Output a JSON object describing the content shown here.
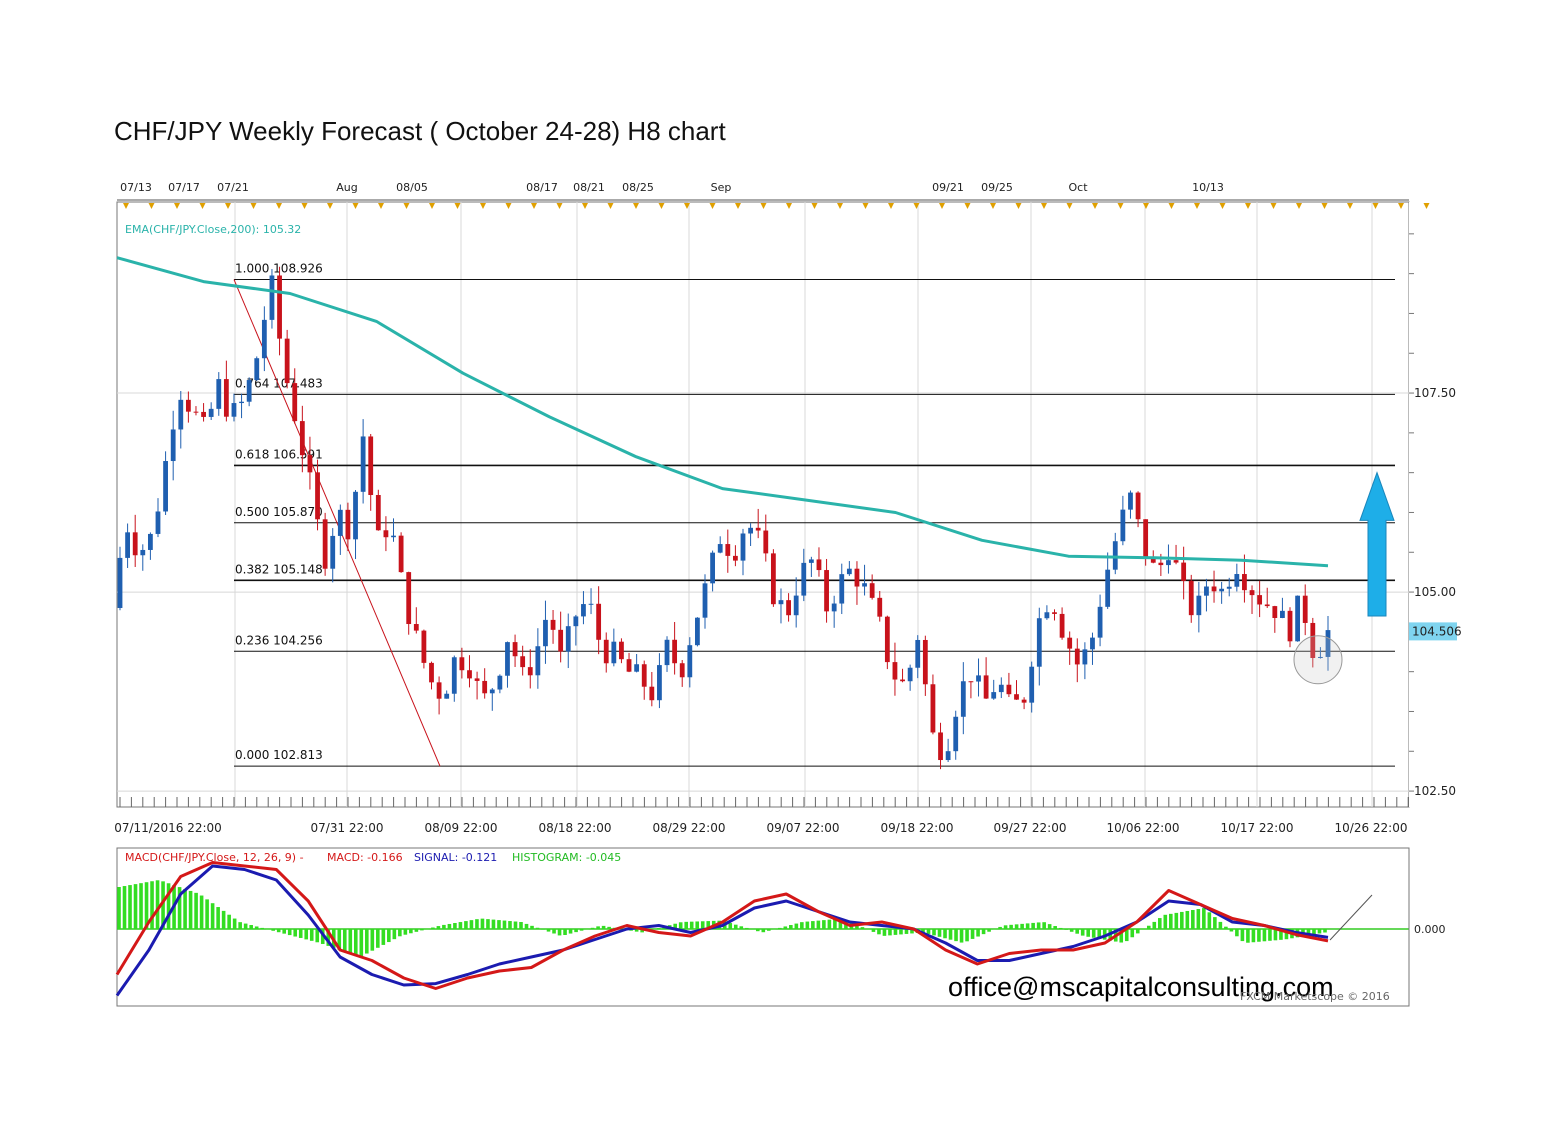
{
  "page": {
    "title": "CHF/JPY  Weekly Forecast ( October 24-28) H8 chart",
    "email": "office@mscapitalconsulting.com",
    "copyright": "FXCM Marketscope © 2016"
  },
  "colors": {
    "bull": "#1f5fb0",
    "bear": "#c8121b",
    "ema": "#2ab3aa",
    "macd": "#d41818",
    "signal": "#1b1bb0",
    "histogram": "#33dd22",
    "arrow": "#1eaee8",
    "price_label_bg": "#7fd4ef"
  },
  "chart_data": [
    {
      "type": "candlestick",
      "ylim": [
        102.3,
        109.9
      ],
      "yticks": [
        "107.50",
        "105.00",
        "102.50"
      ],
      "ytick_values": [
        107.5,
        105.0,
        102.5
      ],
      "top_date_labels": [
        "07/13",
        "07/17",
        "07/21",
        "Aug",
        "08/05",
        "08/17",
        "08/21",
        "08/25",
        "Sep",
        "09/21",
        "09/25",
        "Oct",
        "10/13"
      ],
      "bottom_date_labels": [
        "07/11/2016 22:00",
        "07/31 22:00",
        "08/09 22:00",
        "08/18 22:00",
        "08/29 22:00",
        "09/07 22:00",
        "09/18 22:00",
        "09/27 22:00",
        "10/06 22:00",
        "10/17 22:00",
        "10/26 22:00"
      ],
      "indicator_label": "EMA(CHF/JPY.Close,200): 105.32",
      "current_price_label": "104.506",
      "current_price": 104.506,
      "fibonacci": [
        {
          "label": "1.000 108.926",
          "value": 108.926
        },
        {
          "label": "0.764 107.483",
          "value": 107.483
        },
        {
          "label": "0.618 106.591",
          "value": 106.591
        },
        {
          "label": "0.500 105.870",
          "value": 105.87
        },
        {
          "label": "0.382 105.148",
          "value": 105.148
        },
        {
          "label": "0.236 104.256",
          "value": 104.256
        },
        {
          "label": "0.000 102.813",
          "value": 102.813
        }
      ],
      "close_path": [
        104.8,
        105.9,
        105.5,
        105.7,
        106.6,
        107.6,
        107.3,
        107.0,
        107.6,
        107.2,
        107.4,
        108.0,
        108.9,
        107.8,
        107.1,
        106.3,
        105.4,
        106.0,
        105.8,
        107.0,
        105.6,
        105.9,
        105.0,
        104.4,
        103.9,
        103.7,
        104.2,
        104.1,
        103.6,
        103.9,
        104.5,
        103.9,
        104.2,
        104.8,
        104.1,
        104.7,
        104.9,
        104.3,
        104.2,
        104.0,
        103.9,
        103.7,
        104.3,
        104.0,
        104.6,
        105.1,
        105.7,
        105.5,
        105.9,
        105.6,
        105.0,
        104.7,
        105.2,
        105.4,
        104.8,
        105.1,
        105.3,
        105.0,
        104.6,
        104.0,
        103.8,
        104.5,
        103.2,
        103.0,
        103.7,
        104.0,
        103.6,
        103.9,
        103.5,
        103.7,
        104.6,
        105.0,
        104.5,
        104.1,
        104.3,
        105.1,
        105.7,
        106.2,
        105.6,
        105.2,
        105.6,
        105.0,
        104.7,
        105.2,
        105.0,
        105.4,
        105.1,
        104.9,
        104.8,
        104.5,
        104.9,
        104.2,
        104.5
      ],
      "ema_path": [
        109.2,
        108.9,
        108.75,
        108.4,
        107.75,
        107.2,
        106.7,
        106.3,
        106.15,
        106.0,
        105.65,
        105.45,
        105.43,
        105.4,
        105.33
      ],
      "annotation": "up-arrow"
    },
    {
      "type": "line",
      "indicator_label": "MACD(CHF/JPY.Close, 12, 26, 9) -",
      "macd_label": "MACD: -0.166",
      "signal_label": "SIGNAL: -0.121",
      "histogram_label": "HISTOGRAM: -0.045",
      "ytick": "0.000",
      "ylim": [
        -1.0,
        1.0
      ],
      "macd": [
        -0.65,
        0.1,
        0.75,
        0.95,
        0.9,
        0.85,
        0.4,
        -0.3,
        -0.45,
        -0.7,
        -0.85,
        -0.7,
        -0.6,
        -0.55,
        -0.3,
        -0.1,
        0.05,
        -0.05,
        -0.1,
        0.1,
        0.4,
        0.5,
        0.25,
        0.05,
        0.1,
        0.0,
        -0.3,
        -0.5,
        -0.35,
        -0.3,
        -0.3,
        -0.2,
        0.1,
        0.55,
        0.35,
        0.15,
        0.05,
        -0.08,
        -0.17
      ],
      "signal": [
        -0.95,
        -0.3,
        0.5,
        0.9,
        0.85,
        0.7,
        0.2,
        -0.4,
        -0.65,
        -0.8,
        -0.78,
        -0.65,
        -0.5,
        -0.4,
        -0.3,
        -0.15,
        0.0,
        0.05,
        -0.05,
        0.05,
        0.3,
        0.4,
        0.25,
        0.1,
        0.05,
        0.0,
        -0.2,
        -0.45,
        -0.45,
        -0.35,
        -0.25,
        -0.1,
        0.1,
        0.4,
        0.35,
        0.1,
        0.05,
        -0.05,
        -0.12
      ],
      "histogram": [
        0.6,
        0.7,
        0.5,
        0.1,
        -0.05,
        -0.2,
        -0.4,
        -0.1,
        0.05,
        0.15,
        0.1,
        -0.1,
        0.05,
        -0.05,
        0.1,
        0.12,
        -0.05,
        0.1,
        0.15,
        -0.1,
        -0.05,
        -0.2,
        0.05,
        0.1,
        -0.1,
        -0.2,
        0.2,
        0.3,
        -0.2,
        -0.15,
        -0.05
      ]
    }
  ]
}
